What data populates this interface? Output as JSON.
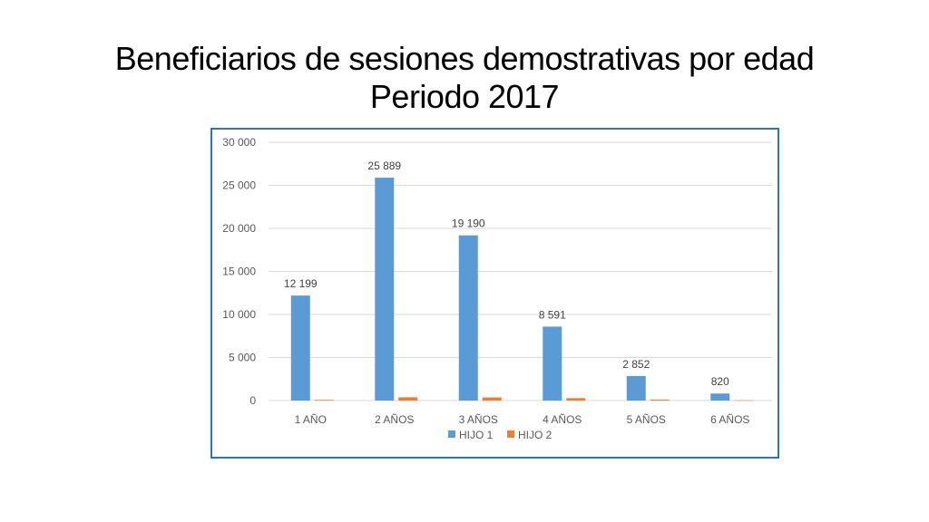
{
  "title": {
    "line1": "Beneficiarios de sesiones demostrativas por edad",
    "line2": "Periodo 2017"
  },
  "colors": {
    "series1": "#5b9bd5",
    "series2": "#ed7d31",
    "frame": "#2e75b6",
    "grid": "#d9d9d9"
  },
  "chart_data": {
    "type": "bar",
    "categories": [
      "1 AÑO",
      "2 AÑOS",
      "3 AÑOS",
      "4 AÑOS",
      "5 AÑOS",
      "6 AÑOS"
    ],
    "series": [
      {
        "name": "HIJO 1",
        "values": [
          12199,
          25889,
          19190,
          8591,
          2852,
          820
        ],
        "labels": [
          "12 199",
          "25 889",
          "19 190",
          "8 591",
          "2 852",
          "820"
        ]
      },
      {
        "name": "HIJO 2",
        "values": [
          80,
          380,
          360,
          280,
          110,
          30
        ]
      }
    ],
    "ylim": [
      0,
      30000
    ],
    "yticks": [
      0,
      5000,
      10000,
      15000,
      20000,
      25000,
      30000
    ],
    "ytick_labels": [
      "0",
      "5 000",
      "10 000",
      "15 000",
      "20 000",
      "25 000",
      "30 000"
    ],
    "grid": true,
    "legend_position": "bottom",
    "xlabel": "",
    "ylabel": ""
  }
}
